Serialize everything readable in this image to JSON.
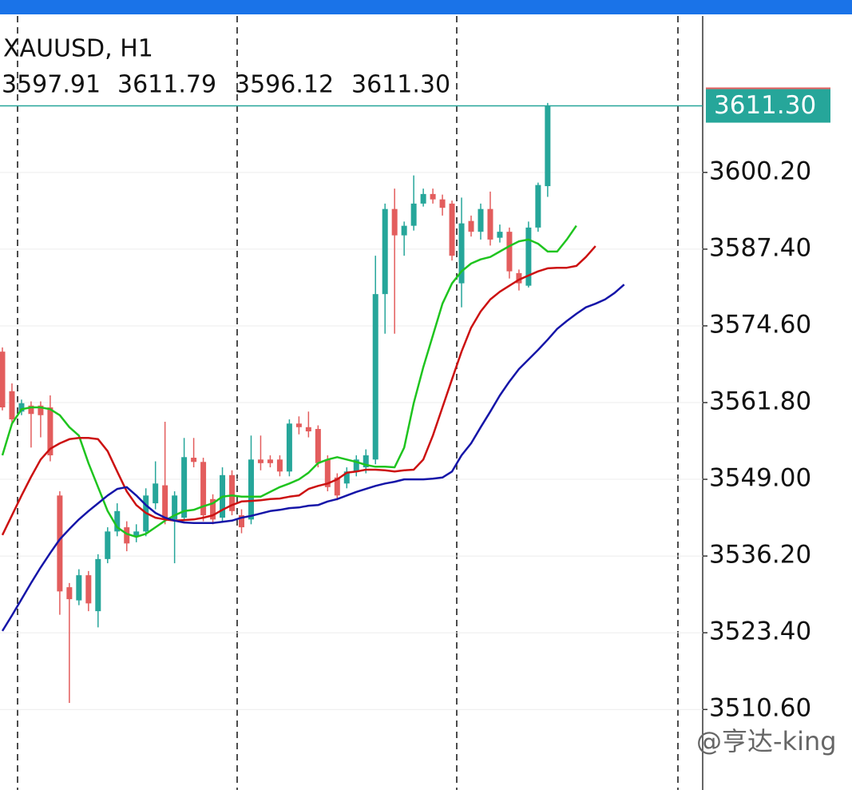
{
  "chart_data": {
    "type": "candlestick",
    "title": "XAUUSD, H1",
    "ohlc_header": [
      "3597.91",
      "3611.79",
      "3596.12",
      "3611.30"
    ],
    "watermark": "@亨达-king",
    "price_tag": {
      "value": 3611.3,
      "label": "3611.30"
    },
    "ylim": [
      3497.7,
      3626.3
    ],
    "yticks": [
      {
        "value": 3510.6,
        "label": "3510.60"
      },
      {
        "value": 3523.4,
        "label": "3523.40"
      },
      {
        "value": 3536.2,
        "label": "3536.20"
      },
      {
        "value": 3549.0,
        "label": "3549.00"
      },
      {
        "value": 3561.8,
        "label": "3561.80"
      },
      {
        "value": 3574.6,
        "label": "3574.60"
      },
      {
        "value": 3587.4,
        "label": "3587.40"
      },
      {
        "value": 3600.2,
        "label": "3600.20"
      }
    ],
    "grid": true,
    "up_color": "#26a69a",
    "down_color": "#e35d5d",
    "open": [
      3570.3,
      3563.7,
      3560.3,
      3561.3,
      3561.3,
      3561.0,
      3546.3,
      3531.0,
      3528.8,
      3533.0,
      3527.0,
      3535.7,
      3540.3,
      3541.0,
      3539.4,
      3540.3,
      3545.0,
      3548.0,
      3542.3,
      3542.6,
      3552.6,
      3551.9,
      3545.7,
      3542.6,
      3549.7,
      3543.0,
      3542.3,
      3552.3,
      3552.3,
      3552.3,
      3550.3,
      3558.3,
      3557.7,
      3557.4,
      3552.3,
      3549.3,
      3548.3,
      3550.3,
      3551.0,
      3552.3,
      3579.9,
      3594.1,
      3589.7,
      3591.3,
      3595.0,
      3596.6,
      3595.7,
      3595.0,
      3581.7,
      3592.1,
      3590.3,
      3594.1,
      3589.3,
      3590.3,
      3583.4,
      3581.3,
      3591.0,
      3597.91,
      null,
      null,
      null,
      null,
      null,
      null,
      null,
      null
    ],
    "high": [
      3571.0,
      3565.0,
      3562.3,
      3562.0,
      3562.0,
      3563.0,
      3547.0,
      3531.7,
      3534.0,
      3533.7,
      3536.5,
      3541.0,
      3545.0,
      3542.0,
      3541.5,
      3547.5,
      3552.0,
      3558.6,
      3547.0,
      3555.9,
      3555.9,
      3552.6,
      3546.5,
      3551.0,
      3550.5,
      3544.0,
      3556.3,
      3556.3,
      3553.0,
      3553.0,
      3559.0,
      3559.5,
      3560.3,
      3558.0,
      3553.0,
      3550.0,
      3551.0,
      3553.0,
      3554.0,
      3586.3,
      3595.0,
      3597.5,
      3592.0,
      3599.7,
      3597.5,
      3597.5,
      3596.5,
      3595.5,
      3596.0,
      3593.0,
      3595.0,
      3597.0,
      3591.5,
      3591.0,
      3584.0,
      3592.0,
      3598.5,
      3611.79,
      null,
      null,
      null,
      null,
      null,
      null,
      null,
      null
    ],
    "low": [
      3560.5,
      3558.5,
      3559.7,
      3554.3,
      3556.0,
      3552.0,
      3526.4,
      3511.7,
      3528.0,
      3527.0,
      3524.3,
      3535.0,
      3539.5,
      3537.0,
      3538.5,
      3539.5,
      3544.0,
      3541.5,
      3535.0,
      3542.0,
      3551.0,
      3542.0,
      3541.5,
      3542.0,
      3543.0,
      3540.0,
      3541.5,
      3550.5,
      3551.0,
      3549.5,
      3549.5,
      3556.5,
      3556.0,
      3551.0,
      3547.0,
      3545.5,
      3547.5,
      3549.5,
      3550.0,
      3551.5,
      3573.3,
      3573.3,
      3586.3,
      3590.5,
      3594.5,
      3595.0,
      3593.0,
      3585.5,
      3577.7,
      3589.5,
      3589.0,
      3588.0,
      3588.5,
      3582.5,
      3580.5,
      3581.0,
      3590.3,
      3596.12,
      null,
      null,
      null,
      null,
      null,
      null,
      null,
      null
    ],
    "close": [
      3561.0,
      3559.0,
      3561.7,
      3559.9,
      3559.7,
      3553.0,
      3530.3,
      3529.0,
      3533.0,
      3528.3,
      3535.7,
      3540.3,
      3543.7,
      3538.3,
      3540.3,
      3546.3,
      3548.3,
      3542.3,
      3546.3,
      3552.7,
      3551.9,
      3543.0,
      3542.3,
      3549.7,
      3543.7,
      3541.0,
      3552.3,
      3551.7,
      3551.7,
      3550.3,
      3558.3,
      3557.7,
      3557.0,
      3551.7,
      3547.7,
      3546.3,
      3550.3,
      3552.3,
      3553.0,
      3579.9,
      3594.1,
      3589.7,
      3591.3,
      3595.0,
      3596.6,
      3595.7,
      3594.3,
      3586.3,
      3591.7,
      3590.3,
      3594.1,
      3589.0,
      3590.3,
      3583.7,
      3581.7,
      3591.0,
      3598.1,
      3611.3,
      null,
      null,
      null,
      null,
      null,
      null,
      null,
      null
    ],
    "series": [
      {
        "color": "#1fc41f",
        "values": [
          3553.0,
          3558.3,
          3560.7,
          3561.0,
          3561.0,
          3560.7,
          3559.7,
          3557.7,
          3556.3,
          3551.7,
          3547.7,
          3543.7,
          3541.0,
          3539.9,
          3539.4,
          3539.9,
          3541.0,
          3542.1,
          3543.0,
          3543.7,
          3543.9,
          3544.5,
          3545.0,
          3546.1,
          3546.3,
          3546.1,
          3546.1,
          3546.1,
          3546.9,
          3547.7,
          3548.3,
          3549.0,
          3550.1,
          3551.7,
          3552.3,
          3552.7,
          3552.3,
          3551.9,
          3551.4,
          3551.1,
          3551.1,
          3551.0,
          3554.3,
          3561.7,
          3567.7,
          3573.0,
          3578.3,
          3581.7,
          3583.7,
          3585.0,
          3585.7,
          3586.1,
          3587.0,
          3587.9,
          3588.7,
          3589.0,
          3588.3,
          3587.0,
          3587.0,
          3589.0,
          3591.3,
          null,
          null,
          null,
          null,
          null
        ]
      },
      {
        "color": "#cc1111",
        "values": [
          3539.7,
          3543.0,
          3546.3,
          3549.4,
          3552.3,
          3554.1,
          3555.0,
          3555.7,
          3555.9,
          3555.9,
          3555.7,
          3553.7,
          3550.3,
          3547.0,
          3544.7,
          3543.4,
          3542.6,
          3542.3,
          3542.1,
          3542.2,
          3542.3,
          3542.6,
          3543.0,
          3543.9,
          3544.7,
          3545.3,
          3545.4,
          3545.5,
          3545.7,
          3545.8,
          3546.1,
          3546.3,
          3547.4,
          3547.9,
          3548.3,
          3549.0,
          3550.1,
          3550.3,
          3550.6,
          3550.6,
          3550.5,
          3550.3,
          3550.5,
          3550.6,
          3552.3,
          3556.3,
          3561.0,
          3565.7,
          3570.3,
          3574.3,
          3577.0,
          3579.0,
          3580.3,
          3581.3,
          3582.3,
          3583.0,
          3583.7,
          3584.2,
          3584.3,
          3584.3,
          3584.6,
          3586.1,
          3587.9,
          null,
          null,
          null
        ]
      },
      {
        "color": "#1515a8",
        "values": [
          3523.7,
          3526.3,
          3529.0,
          3531.7,
          3534.3,
          3536.7,
          3539.0,
          3540.7,
          3542.3,
          3543.7,
          3545.0,
          3546.3,
          3547.4,
          3547.7,
          3546.3,
          3544.7,
          3543.4,
          3542.6,
          3542.1,
          3541.8,
          3541.7,
          3541.7,
          3541.7,
          3541.9,
          3542.1,
          3542.6,
          3542.9,
          3543.3,
          3543.7,
          3543.9,
          3544.2,
          3544.3,
          3544.6,
          3544.7,
          3545.3,
          3545.7,
          3546.3,
          3546.9,
          3547.4,
          3547.9,
          3548.3,
          3548.6,
          3549.0,
          3549.0,
          3549.0,
          3549.1,
          3549.3,
          3550.3,
          3553.0,
          3555.0,
          3557.7,
          3560.3,
          3563.0,
          3565.3,
          3567.4,
          3569.0,
          3570.6,
          3572.3,
          3574.1,
          3575.4,
          3576.6,
          3577.7,
          3578.3,
          3579.0,
          3580.1,
          3581.5
        ]
      }
    ]
  }
}
